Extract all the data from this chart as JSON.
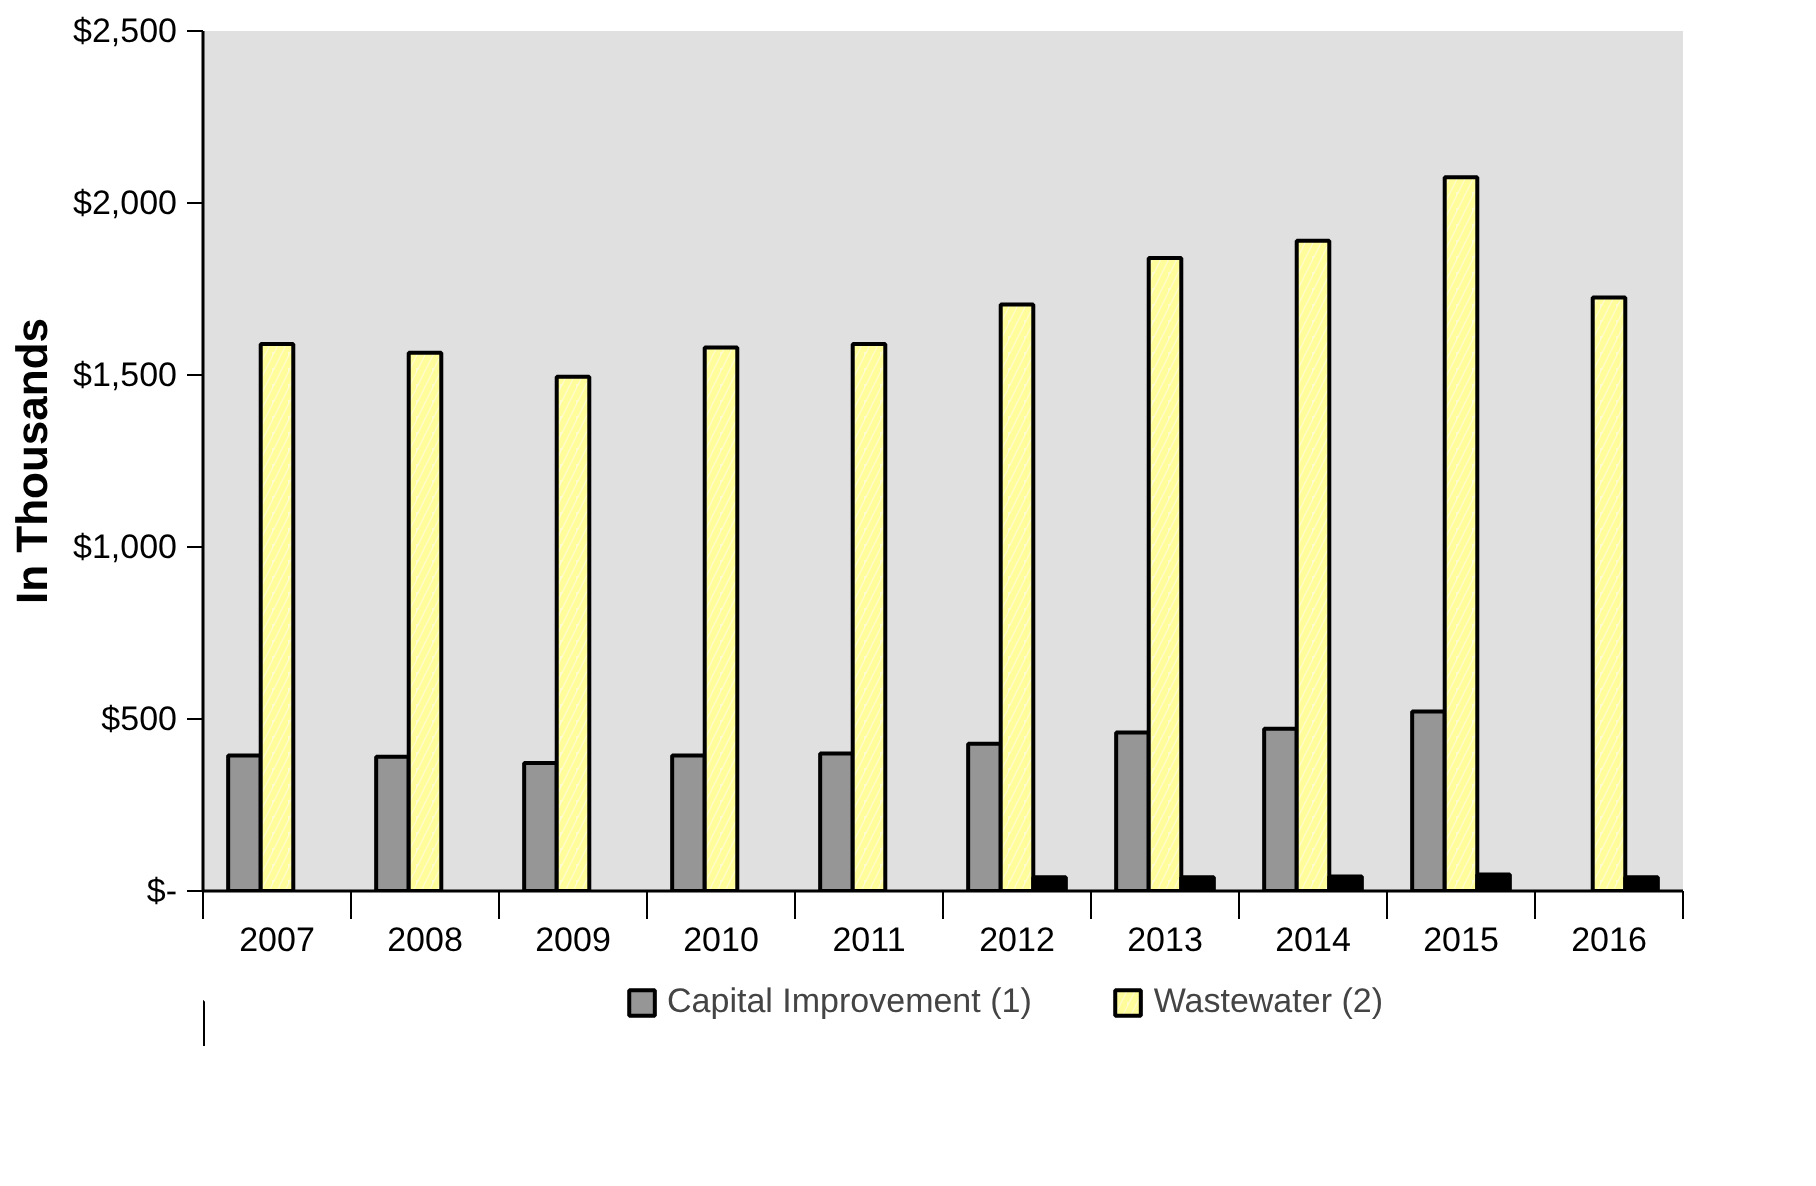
{
  "chart_data": {
    "type": "bar",
    "ylabel": "In Thousands",
    "categories": [
      "2007",
      "2008",
      "2009",
      "2010",
      "2011",
      "2012",
      "2013",
      "2014",
      "2015",
      "2016"
    ],
    "series": [
      {
        "name": "Capital Improvement (1)",
        "color": "#969696",
        "values": [
          394,
          390,
          372,
          394,
          400,
          428,
          461,
          472,
          522,
          null
        ]
      },
      {
        "name": "Wastewater (2)",
        "color": "#fffbd0",
        "values": [
          1590,
          1565,
          1495,
          1580,
          1590,
          1705,
          1840,
          1890,
          2075,
          1725
        ]
      },
      {
        "color": "#000000",
        "values": [
          null,
          null,
          null,
          null,
          null,
          40,
          40,
          42,
          48,
          40
        ]
      }
    ],
    "ylim": [
      0,
      2500
    ],
    "yticks": [
      {
        "value": 0,
        "label": "$-"
      },
      {
        "value": 500,
        "label": "$500"
      },
      {
        "value": 1000,
        "label": "$1,000"
      },
      {
        "value": 1500,
        "label": "$1,500"
      },
      {
        "value": 2000,
        "label": "$2,000"
      },
      {
        "value": 2500,
        "label": "$2,500"
      }
    ],
    "legend": "bottom"
  }
}
